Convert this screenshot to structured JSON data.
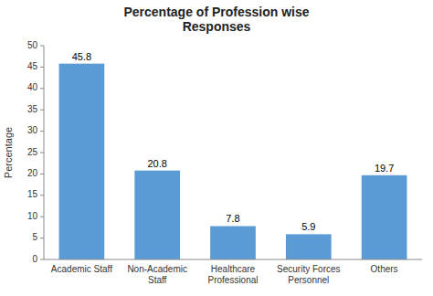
{
  "chart_data": {
    "type": "bar",
    "title": "Percentage of Profession wise\nResponses",
    "categories": [
      "Academic Staff",
      "Non-Academic\nStaff",
      "Healthcare\nProfessional",
      "Security Forces\nPersonnel",
      "Others"
    ],
    "values": [
      45.8,
      20.8,
      7.8,
      5.9,
      19.7
    ],
    "color": "#5B9BD5",
    "ylabel": "Percentage",
    "ylim": [
      0,
      50
    ],
    "yticks": [
      0,
      5,
      10,
      15,
      20,
      25,
      30,
      35,
      40,
      45,
      50
    ],
    "grid": false,
    "data_labels": true
  }
}
